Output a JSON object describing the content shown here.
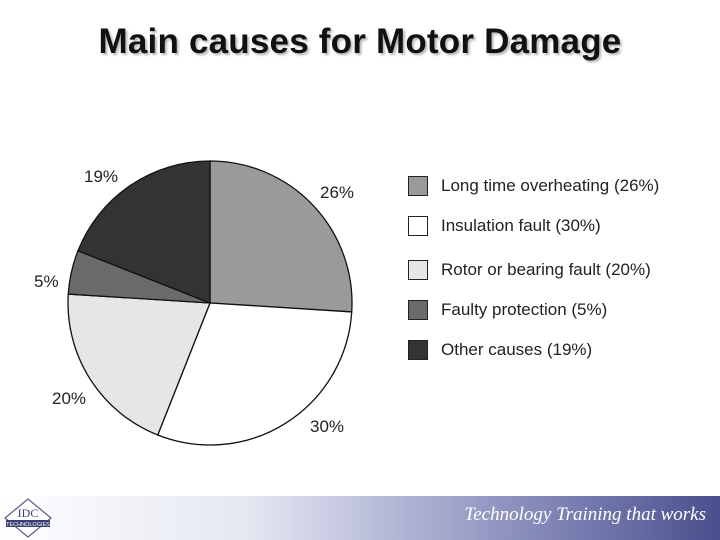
{
  "title": "Main causes for Motor Damage",
  "footer": {
    "tagline": "Technology Training that works",
    "logo_text": "IDC",
    "logo_subtext": "TECHNOLOGIES"
  },
  "chart_data": {
    "type": "pie",
    "title": "Main causes for Motor Damage",
    "slices": [
      {
        "label": "Long time overheating (26%)",
        "value": 26,
        "pct_label": "26%",
        "color": "#9a9a9a"
      },
      {
        "label": "Insulation fault (30%)",
        "value": 30,
        "pct_label": "30%",
        "color": "#ffffff"
      },
      {
        "label": "Rotor or bearing fault (20%)",
        "value": 20,
        "pct_label": "20%",
        "color": "#e6e6e6"
      },
      {
        "label": "Faulty protection (5%)",
        "value": 5,
        "pct_label": "5%",
        "color": "#6a6a6a"
      },
      {
        "label": "Other causes (19%)",
        "value": 19,
        "pct_label": "19%",
        "color": "#333333"
      }
    ],
    "legend_position": "right"
  }
}
